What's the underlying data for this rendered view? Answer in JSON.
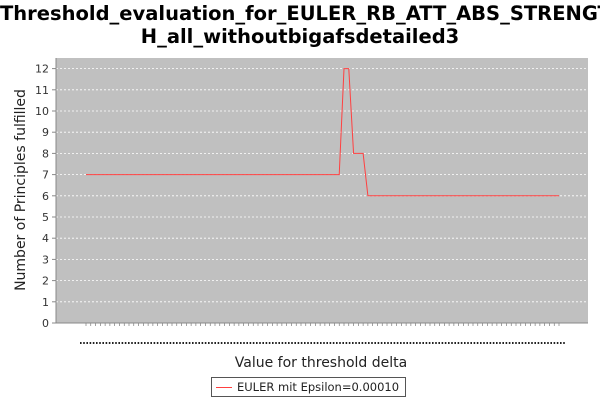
{
  "chart_data": {
    "type": "line",
    "title_lines": [
      "Threshold_evaluation_for_EULER_RB_ATT_ABS_STRENGT",
      "H_all_withoutbigafsdetailed3"
    ],
    "xlabel": "Value for threshold delta",
    "ylabel": "Number of Principles fulfilled",
    "ylim": [
      0,
      12.5
    ],
    "yticks": [
      0,
      1,
      2,
      3,
      4,
      5,
      6,
      7,
      8,
      9,
      10,
      11,
      12
    ],
    "x_tick_labels_legible": false,
    "x_tick_count": 100,
    "grid": true,
    "legend_position": "bottom-center",
    "colors": {
      "plot_bg": "#c0c0c0",
      "grid": "#ffffff",
      "series": "#ff4040"
    },
    "series": [
      {
        "name": "EULER mit Epsilon=0.00010",
        "x": [
          0,
          1,
          2,
          3,
          4,
          5,
          6,
          7,
          8,
          9,
          10,
          11,
          12,
          13,
          14,
          15,
          16,
          17,
          18,
          19,
          20,
          21,
          22,
          23,
          24,
          25,
          26,
          27,
          28,
          29,
          30,
          31,
          32,
          33,
          34,
          35,
          36,
          37,
          38,
          39,
          40,
          41,
          42,
          43,
          44,
          45,
          46,
          47,
          48,
          49,
          50,
          51,
          52,
          53,
          54,
          55,
          56,
          57,
          58,
          59,
          60,
          61,
          62,
          63,
          64,
          65,
          66,
          67,
          68,
          69,
          70,
          71,
          72,
          73,
          74,
          75,
          76,
          77,
          78,
          79,
          80,
          81,
          82,
          83,
          84,
          85,
          86,
          87,
          88,
          89,
          90,
          91,
          92,
          93,
          94,
          95,
          96,
          97,
          98,
          99
        ],
        "values": [
          7,
          7,
          7,
          7,
          7,
          7,
          7,
          7,
          7,
          7,
          7,
          7,
          7,
          7,
          7,
          7,
          7,
          7,
          7,
          7,
          7,
          7,
          7,
          7,
          7,
          7,
          7,
          7,
          7,
          7,
          7,
          7,
          7,
          7,
          7,
          7,
          7,
          7,
          7,
          7,
          7,
          7,
          7,
          7,
          7,
          7,
          7,
          7,
          7,
          7,
          7,
          7,
          7,
          7,
          12,
          12,
          8,
          8,
          8,
          6,
          6,
          6,
          6,
          6,
          6,
          6,
          6,
          6,
          6,
          6,
          6,
          6,
          6,
          6,
          6,
          6,
          6,
          6,
          6,
          6,
          6,
          6,
          6,
          6,
          6,
          6,
          6,
          6,
          6,
          6,
          6,
          6,
          6,
          6,
          6,
          6,
          6,
          6,
          6,
          6
        ]
      }
    ]
  }
}
